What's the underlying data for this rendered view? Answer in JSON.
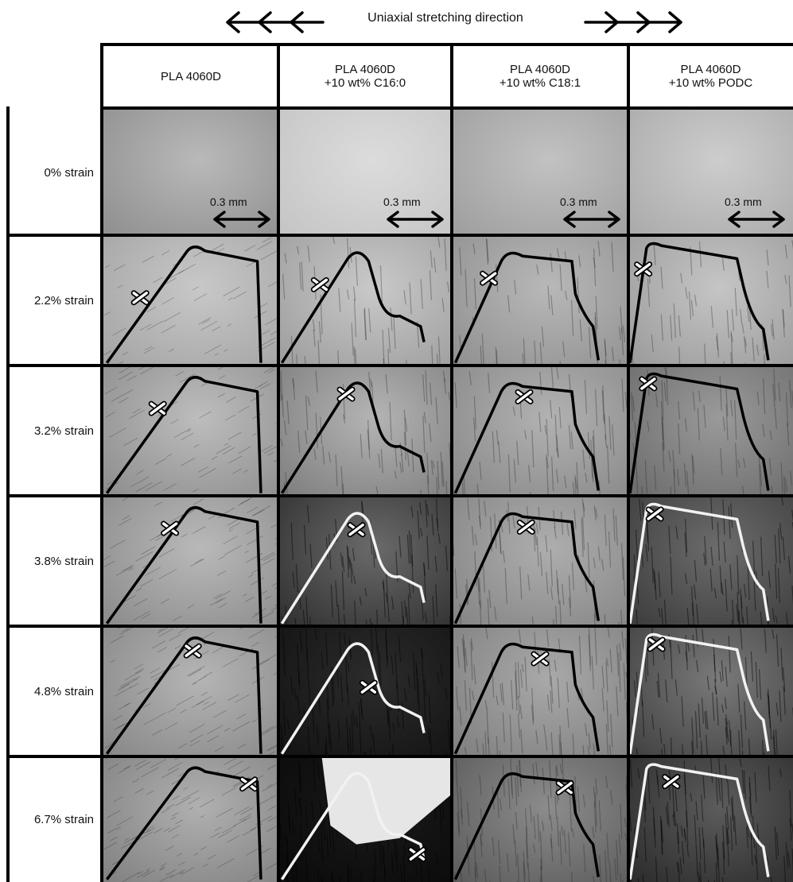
{
  "header": {
    "direction_label": "Uniaxial stretching direction",
    "arrow_icon_left": "triple-left-arrow-icon",
    "arrow_icon_right": "triple-right-arrow-icon"
  },
  "columns": [
    {
      "line1": "PLA 4060D",
      "line2": ""
    },
    {
      "line1": "PLA 4060D",
      "line2": "+10 wt% C16:0"
    },
    {
      "line1": "PLA 4060D",
      "line2": "+10 wt% C18:1"
    },
    {
      "line1": "PLA 4060D",
      "line2": "+10 wt% PODC"
    }
  ],
  "rows": [
    {
      "label": "0% strain"
    },
    {
      "label": "2.2% strain"
    },
    {
      "label": "3.2% strain"
    },
    {
      "label": "3.8% strain"
    },
    {
      "label": "4.8% strain"
    },
    {
      "label": "6.7% strain"
    }
  ],
  "scale_bar": {
    "label": "0.3 mm"
  },
  "colors": {
    "border": "#000000",
    "curve_dark": "#000000",
    "curve_light": "#f2f2f2"
  }
}
